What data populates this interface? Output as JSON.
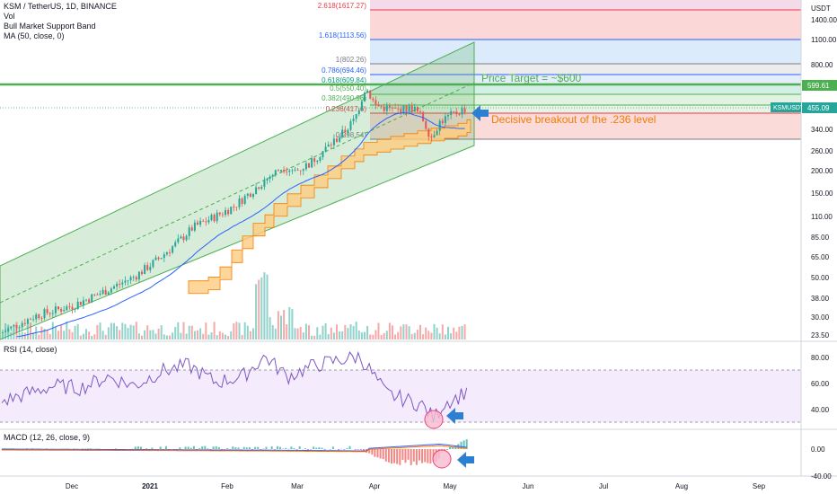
{
  "legend": {
    "symbol": "KSM / TetherUS, 1D, BINANCE",
    "vol": "Vol",
    "band": "Bull Market Support Band",
    "ma": "MA (50, close, 0)"
  },
  "price_axis": {
    "currency": "USDT",
    "ticks": [
      "1400.00",
      "1100.00",
      "800.00",
      "600.00",
      "340.00",
      "260.00",
      "200.00",
      "150.00",
      "110.00",
      "85.00",
      "65.00",
      "50.00",
      "38.00",
      "30.00",
      "23.50"
    ],
    "tag_target": "599.61",
    "tag_symbol": "KSMUSDT",
    "tag_price": "455.09"
  },
  "fib_levels": [
    {
      "label": "2.618(1617.27)",
      "color": "#f23645"
    },
    {
      "label": "1.618(1113.56)",
      "color": "#2962ff"
    },
    {
      "label": "1(802.26)",
      "color": "#787b86"
    },
    {
      "label": "0.786(694.46)",
      "color": "#2962ff"
    },
    {
      "label": "0.618(609.84)",
      "color": "#089981"
    },
    {
      "label": "0.5(550.40)",
      "color": "#4caf50"
    },
    {
      "label": "0.382(490.96)",
      "color": "#4caf50"
    },
    {
      "label": "0.236(417.6)",
      "color": "#f23645"
    },
    {
      "label": "0(298.54)",
      "color": "#787b86"
    }
  ],
  "annotations": {
    "target": "Price Target = ~$600",
    "breakout": "Decisive breakout of the .236 level"
  },
  "rsi": {
    "title": "RSI (14, close)",
    "ticks": [
      "80.00",
      "60.00",
      "40.00"
    ]
  },
  "macd": {
    "title": "MACD (12, 26, close, 9)",
    "ticks": [
      "0.00",
      "-40.00"
    ]
  },
  "time_axis": [
    "Dec",
    "2021",
    "Feb",
    "Mar",
    "Apr",
    "May",
    "Jun",
    "Jul",
    "Aug",
    "Sep"
  ],
  "colors": {
    "up": "#26a69a",
    "down": "#ef5350",
    "channel": "#4caf50",
    "band": "#ff9800",
    "ma": "#2962ff",
    "rsi": "#7e57c2",
    "arrow": "#2d7fd1"
  },
  "chart_data": {
    "type": "candlestick",
    "symbol": "KSM / TetherUS",
    "interval": "1D",
    "y_scale": "log",
    "x": [
      "2020-11-18",
      "2020-12-01",
      "2021-01-01",
      "2021-02-01",
      "2021-03-01",
      "2021-04-01",
      "2021-04-12",
      "2021-04-26",
      "2021-05-01",
      "2021-05-12"
    ],
    "close_approx": [
      24,
      33,
      45,
      105,
      230,
      600,
      430,
      300,
      380,
      455
    ],
    "last_price": 455.09,
    "price_target": 599.61,
    "rsi_approx": [
      50,
      60,
      70,
      75,
      85,
      72,
      55,
      33,
      50,
      58
    ],
    "macd_note": "MACD histogram rising from negative territory in early May"
  }
}
